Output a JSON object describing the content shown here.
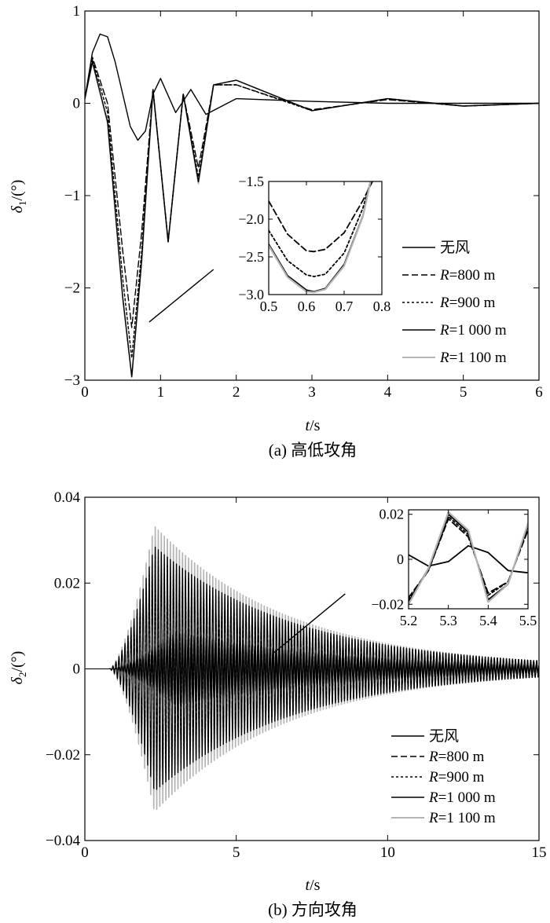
{
  "chart_data": [
    {
      "type": "line",
      "caption": "(a) 高低攻角",
      "ylabel_symbol": "δ",
      "ylabel_sub": "1",
      "ylabel_unit": "/(°)",
      "xlabel_symbol": "t",
      "xlabel_unit": "/s",
      "xlim": [
        0,
        6
      ],
      "ylim": [
        -3,
        1
      ],
      "x_ticks": [
        "0",
        "1",
        "2",
        "3",
        "4",
        "5",
        "6"
      ],
      "y_ticks": [
        "1",
        "0",
        "−1",
        "−2",
        "−3"
      ],
      "series": [
        {
          "name": "无风",
          "color": "#000000",
          "dash": "solid",
          "x": [
            0,
            0.1,
            0.2,
            0.3,
            0.4,
            0.5,
            0.6,
            0.7,
            0.8,
            0.9,
            1.0,
            1.2,
            1.4,
            1.6,
            2.0,
            3.0,
            4.0,
            5.0,
            6.0
          ],
          "y": [
            0.05,
            0.55,
            0.75,
            0.72,
            0.45,
            0.1,
            -0.25,
            -0.4,
            -0.3,
            0.1,
            0.27,
            -0.1,
            0.15,
            -0.12,
            0.05,
            0.02,
            0.0,
            0.0,
            0.0
          ]
        },
        {
          "name": "R=800 m",
          "color": "#000000",
          "dash": "8,4",
          "x": [
            0,
            0.1,
            0.3,
            0.5,
            0.62,
            0.75,
            0.9,
            1.1,
            1.3,
            1.5,
            1.7,
            2.0,
            3.0,
            4.0,
            5.0,
            6.0
          ],
          "y": [
            0.05,
            0.5,
            0.0,
            -1.6,
            -2.43,
            -1.4,
            0.15,
            -1.5,
            0.1,
            -0.7,
            0.2,
            0.2,
            -0.07,
            0.04,
            -0.03,
            0.0
          ]
        },
        {
          "name": "R=900 m",
          "color": "#000000",
          "dash": "3,3",
          "x": [
            0,
            0.1,
            0.3,
            0.5,
            0.62,
            0.75,
            0.9,
            1.1,
            1.3,
            1.5,
            1.7,
            2.0,
            3.0,
            4.0,
            5.0,
            6.0
          ],
          "y": [
            0.05,
            0.48,
            -0.1,
            -1.9,
            -2.76,
            -1.6,
            0.15,
            -1.5,
            0.1,
            -0.8,
            0.2,
            0.2,
            -0.08,
            0.05,
            -0.03,
            0.0
          ]
        },
        {
          "name": "R=1 000 m",
          "color": "#000000",
          "dash": "solid",
          "x": [
            0,
            0.1,
            0.3,
            0.5,
            0.62,
            0.75,
            0.9,
            1.1,
            1.3,
            1.5,
            1.7,
            2.0,
            3.0,
            4.0,
            5.0,
            6.0
          ],
          "y": [
            0.05,
            0.45,
            -0.2,
            -2.1,
            -2.96,
            -1.7,
            0.15,
            -1.5,
            0.1,
            -0.85,
            0.2,
            0.25,
            -0.08,
            0.05,
            -0.03,
            0.0
          ]
        },
        {
          "name": "R=1 100 m",
          "color": "#b4b4b4",
          "dash": "solid",
          "x": [
            0,
            0.1,
            0.3,
            0.5,
            0.62,
            0.75,
            0.9,
            1.1,
            1.3,
            1.5,
            1.7,
            2.0,
            3.0,
            4.0,
            5.0,
            6.0
          ],
          "y": [
            0.05,
            0.44,
            -0.22,
            -2.12,
            -2.97,
            -1.72,
            0.15,
            -1.5,
            0.1,
            -0.87,
            0.2,
            0.25,
            -0.08,
            0.05,
            -0.03,
            0.0
          ]
        }
      ],
      "inset": {
        "xlim": [
          0.5,
          0.8
        ],
        "ylim": [
          -3.0,
          -1.5
        ],
        "x_ticks": [
          "0.5",
          "0.6",
          "0.7",
          "0.8"
        ],
        "y_ticks": [
          "−1.5",
          "−2.0",
          "−2.5",
          "−3.0"
        ],
        "series": [
          {
            "name": "R=800 m",
            "x": [
              0.5,
              0.55,
              0.6,
              0.62,
              0.65,
              0.7,
              0.75,
              0.775
            ],
            "y": [
              -1.76,
              -2.2,
              -2.42,
              -2.43,
              -2.4,
              -2.18,
              -1.75,
              -1.5
            ]
          },
          {
            "name": "R=900 m",
            "x": [
              0.5,
              0.55,
              0.6,
              0.62,
              0.65,
              0.7,
              0.75,
              0.77
            ],
            "y": [
              -2.15,
              -2.55,
              -2.74,
              -2.76,
              -2.73,
              -2.45,
              -1.85,
              -1.5
            ]
          },
          {
            "name": "R=1 000 m",
            "x": [
              0.5,
              0.55,
              0.6,
              0.62,
              0.65,
              0.7,
              0.75,
              0.77
            ],
            "y": [
              -2.33,
              -2.75,
              -2.94,
              -2.96,
              -2.92,
              -2.6,
              -1.95,
              -1.5
            ]
          },
          {
            "name": "R=1 100 m",
            "x": [
              0.5,
              0.55,
              0.6,
              0.62,
              0.65,
              0.7,
              0.75,
              0.77
            ],
            "y": [
              -2.35,
              -2.77,
              -2.96,
              -2.97,
              -2.93,
              -2.62,
              -1.96,
              -1.5
            ]
          }
        ]
      }
    },
    {
      "type": "line",
      "caption": "(b) 方向攻角",
      "ylabel_symbol": "δ",
      "ylabel_sub": "2",
      "ylabel_unit": "/(°)",
      "xlabel_symbol": "t",
      "xlabel_unit": "/s",
      "xlim": [
        0,
        15
      ],
      "ylim": [
        -0.04,
        0.04
      ],
      "x_ticks": [
        "0",
        "5",
        "10",
        "15"
      ],
      "y_ticks": [
        "0.04",
        "0.02",
        "0",
        "−0.02",
        "−0.04"
      ],
      "oscillation_frequency_hz": 10,
      "onset_s": 0.8,
      "series": [
        {
          "name": "无风",
          "color": "#000000",
          "dash": "solid",
          "peak_amplitude": 0.009,
          "peak_time_s": 3.0,
          "decay_amplitude_at_15s": 0.001
        },
        {
          "name": "R=800 m",
          "color": "#000000",
          "dash": "8,4",
          "peak_amplitude": 0.026,
          "peak_time_s": 2.3,
          "decay_amplitude_at_15s": 0.002
        },
        {
          "name": "R=900 m",
          "color": "#000000",
          "dash": "3,3",
          "peak_amplitude": 0.028,
          "peak_time_s": 2.3,
          "decay_amplitude_at_15s": 0.002
        },
        {
          "name": "R=1 000 m",
          "color": "#000000",
          "dash": "solid",
          "peak_amplitude": 0.03,
          "peak_time_s": 2.3,
          "decay_amplitude_at_15s": 0.002
        },
        {
          "name": "R=1 100 m",
          "color": "#b4b4b4",
          "dash": "solid",
          "peak_amplitude": 0.035,
          "peak_time_s": 2.3,
          "decay_amplitude_at_15s": 0.002
        }
      ],
      "inset": {
        "xlim": [
          5.2,
          5.5
        ],
        "ylim": [
          -0.022,
          0.022
        ],
        "x_ticks": [
          "5.2",
          "5.3",
          "5.4",
          "5.5"
        ],
        "y_ticks": [
          "0.02",
          "0",
          "−0.02"
        ],
        "series": [
          {
            "name": "无风",
            "x": [
              5.2,
              5.25,
              5.3,
              5.35,
              5.4,
              5.45,
              5.5
            ],
            "y": [
              0.002,
              -0.003,
              -0.001,
              0.006,
              0.003,
              -0.005,
              -0.006
            ]
          },
          {
            "name": "R=800 m",
            "x": [
              5.2,
              5.25,
              5.3,
              5.35,
              5.4,
              5.45,
              5.5
            ],
            "y": [
              -0.017,
              -0.005,
              0.018,
              0.01,
              -0.015,
              -0.01,
              0.013
            ]
          },
          {
            "name": "R=900 m",
            "x": [
              5.2,
              5.25,
              5.3,
              5.35,
              5.4,
              5.45,
              5.5
            ],
            "y": [
              -0.018,
              -0.005,
              0.019,
              0.011,
              -0.016,
              -0.01,
              0.014
            ]
          },
          {
            "name": "R=1 000 m",
            "x": [
              5.2,
              5.25,
              5.3,
              5.35,
              5.4,
              5.45,
              5.5
            ],
            "y": [
              -0.019,
              -0.004,
              0.02,
              0.012,
              -0.018,
              -0.011,
              0.015
            ]
          },
          {
            "name": "R=1 100 m",
            "x": [
              5.2,
              5.25,
              5.3,
              5.35,
              5.4,
              5.45,
              5.5
            ],
            "y": [
              -0.02,
              -0.004,
              0.021,
              0.013,
              -0.019,
              -0.011,
              0.016
            ]
          }
        ]
      }
    }
  ]
}
